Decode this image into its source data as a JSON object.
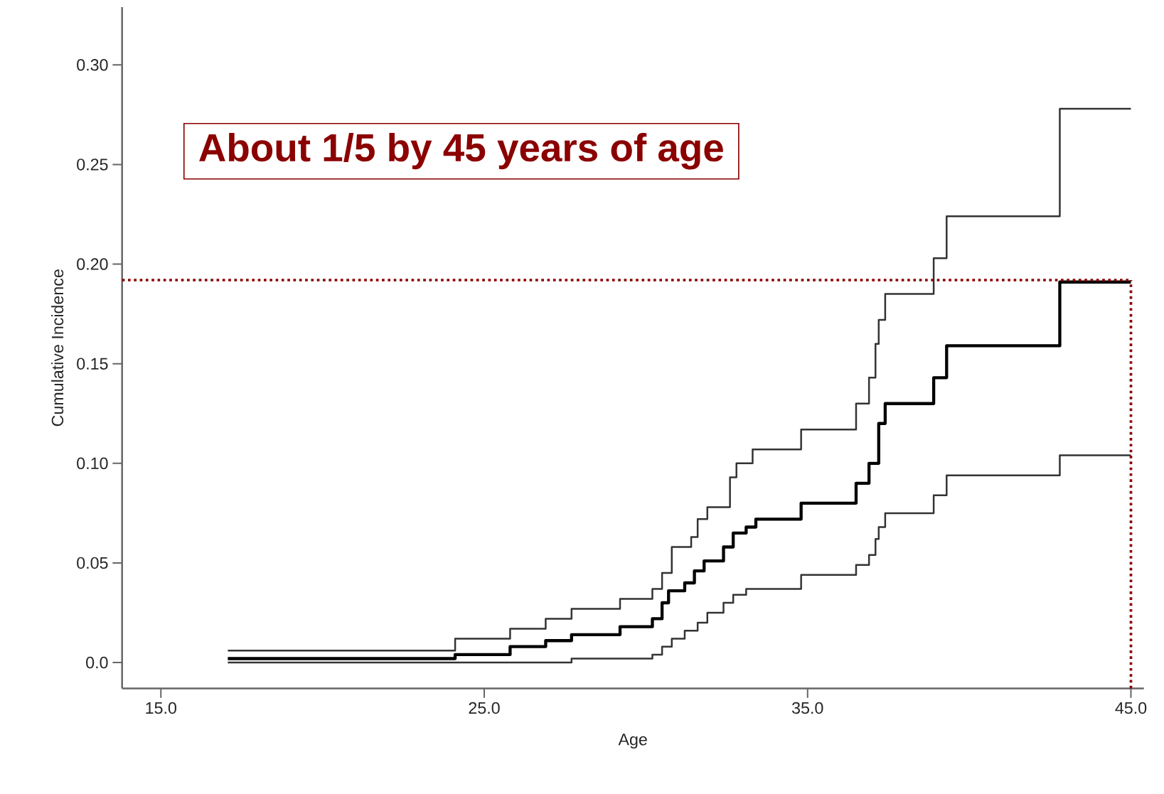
{
  "chart_data": {
    "type": "step",
    "xlabel": "Age",
    "ylabel": "Cumulative Incidence",
    "annotations": [
      "About 1/5 by 45 years of age"
    ],
    "xlim": [
      13.8,
      45.4
    ],
    "ylim": [
      -0.013,
      0.329
    ],
    "xticks": [
      {
        "value": 15,
        "label": "15.0"
      },
      {
        "value": 25,
        "label": "25.0"
      },
      {
        "value": 35,
        "label": "35.0"
      },
      {
        "value": 45,
        "label": "45.0"
      }
    ],
    "yticks": [
      {
        "value": 0,
        "label": "0.0"
      },
      {
        "value": 0.05,
        "label": "0.05"
      },
      {
        "value": 0.1,
        "label": "0.10"
      },
      {
        "value": 0.15,
        "label": "0.15"
      },
      {
        "value": 0.2,
        "label": "0.20"
      },
      {
        "value": 0.25,
        "label": "0.25"
      },
      {
        "value": 0.3,
        "label": "0.30"
      }
    ],
    "series": [
      {
        "color": "#333333",
        "x": [
          17.07,
          24.1,
          25.8,
          26.9,
          27.7,
          29.2,
          30.2,
          30.5,
          30.8,
          31.4,
          31.6,
          31.9,
          32.6,
          32.8,
          33.3,
          34.8,
          36.5,
          36.9,
          37.1,
          37.2,
          37.4,
          38.9,
          39.3,
          42.8,
          45
        ],
        "values": [
          0.006,
          0.012,
          0.017,
          0.022,
          0.027,
          0.032,
          0.037,
          0.045,
          0.058,
          0.063,
          0.072,
          0.078,
          0.093,
          0.1,
          0.107,
          0.117,
          0.13,
          0.143,
          0.16,
          0.172,
          0.185,
          0.203,
          0.224,
          0.278,
          0.278
        ]
      },
      {
        "color": "#000000",
        "x": [
          17.07,
          24.1,
          25.8,
          26.9,
          27.7,
          29.2,
          30.2,
          30.5,
          30.7,
          31.2,
          31.5,
          31.8,
          32.4,
          32.7,
          33.1,
          33.4,
          34.8,
          36.5,
          36.9,
          37.2,
          37.4,
          38.9,
          39.3,
          42.8,
          45
        ],
        "values": [
          0.002,
          0.004,
          0.008,
          0.011,
          0.014,
          0.018,
          0.022,
          0.03,
          0.036,
          0.04,
          0.046,
          0.051,
          0.058,
          0.065,
          0.068,
          0.072,
          0.08,
          0.09,
          0.1,
          0.12,
          0.13,
          0.143,
          0.159,
          0.191,
          0.191
        ]
      },
      {
        "color": "#333333",
        "x": [
          17.07,
          27.7,
          30.2,
          30.5,
          30.8,
          31.2,
          31.6,
          31.9,
          32.4,
          32.7,
          33.1,
          34.8,
          36.5,
          36.9,
          37.1,
          37.2,
          37.4,
          38.9,
          39.3,
          42.8,
          45
        ],
        "values": [
          0.0,
          0.002,
          0.004,
          0.008,
          0.012,
          0.016,
          0.02,
          0.025,
          0.03,
          0.034,
          0.037,
          0.044,
          0.049,
          0.054,
          0.062,
          0.068,
          0.075,
          0.084,
          0.094,
          0.104,
          0.104
        ]
      }
    ],
    "ref_lines": [
      {
        "axis": "y",
        "value": 0.192,
        "color": "#8b0000",
        "line_style": "dotted"
      },
      {
        "axis": "x",
        "value": 45,
        "color": "#8b0000",
        "line_style": "dotted"
      }
    ],
    "grid": false,
    "line_style": "solid"
  }
}
